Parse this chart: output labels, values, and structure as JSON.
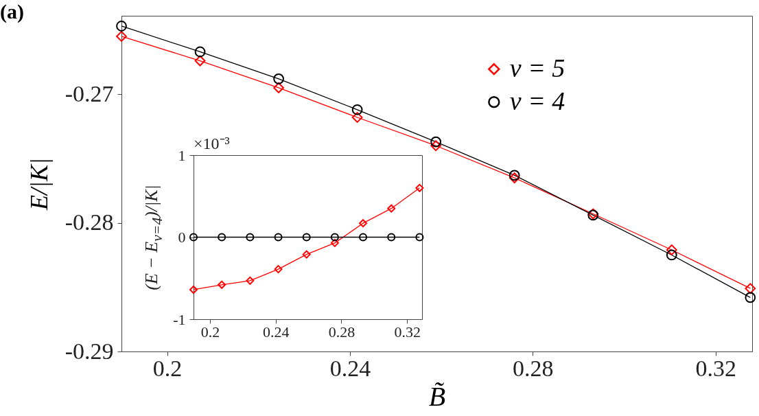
{
  "chart_data": [
    {
      "type": "line",
      "title": "(a)",
      "xlabel": "B̃",
      "ylabel": "E/|K|",
      "x": [
        0.19,
        0.2072,
        0.2244,
        0.2416,
        0.2588,
        0.276,
        0.2932,
        0.3104,
        0.3276
      ],
      "series": [
        {
          "name": "ν = 5",
          "color": "#ff0000",
          "marker": "diamond",
          "values": [
            -0.2655,
            -0.2674,
            -0.2695,
            -0.2718,
            -0.274,
            -0.2765,
            -0.2793,
            -0.2821,
            -0.2851
          ]
        },
        {
          "name": "ν = 4",
          "color": "#000000",
          "marker": "circle",
          "values": [
            -0.2647,
            -0.2667,
            -0.2688,
            -0.2712,
            -0.2737,
            -0.2763,
            -0.2794,
            -0.2825,
            -0.2858
          ]
        }
      ],
      "xlim": [
        0.19,
        0.328
      ],
      "xticks": [
        0.2,
        0.24,
        0.28,
        0.32
      ],
      "ylim": [
        -0.29,
        -0.2639
      ],
      "yticks": [
        -0.29,
        -0.28,
        -0.27
      ],
      "legend": "top right",
      "grid": false,
      "line_style": "solid"
    },
    {
      "type": "line",
      "ylabel": "(E − E$_{ν=4}$)/|K|",
      "annotations": [
        "×10⁻³"
      ],
      "x": [
        0.19,
        0.2072,
        0.2244,
        0.2416,
        0.2588,
        0.276,
        0.2932,
        0.3104,
        0.3276
      ],
      "series": [
        {
          "color": "#ff0000",
          "marker": "diamond",
          "values": [
            -0.64,
            -0.58,
            -0.53,
            -0.39,
            -0.21,
            -0.07,
            0.17,
            0.35,
            0.6
          ]
        },
        {
          "color": "#000000",
          "marker": "circle",
          "values": [
            0,
            0,
            0,
            0,
            0,
            0,
            0,
            0,
            0
          ]
        }
      ],
      "xlim": [
        0.19,
        0.3291
      ],
      "xticks": [
        0.2,
        0.24,
        0.28,
        0.32
      ],
      "ylim": [
        -1,
        1
      ],
      "yticks": [
        -1,
        0,
        1
      ],
      "legend": false,
      "grid": false,
      "line_style": "solid"
    }
  ]
}
